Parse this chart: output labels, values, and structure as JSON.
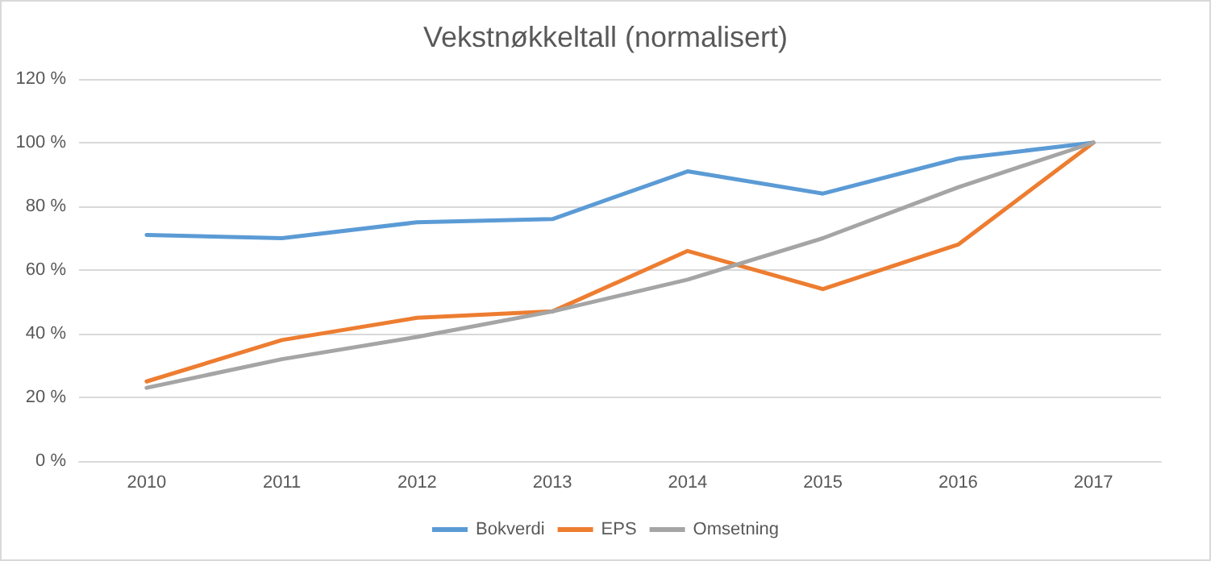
{
  "chart_data": {
    "type": "line",
    "title": "Vekstnøkkeltall (normalisert)",
    "categories": [
      "2010",
      "2011",
      "2012",
      "2013",
      "2014",
      "2015",
      "2016",
      "2017"
    ],
    "series": [
      {
        "name": "Bokverdi",
        "color": "#5b9bd5",
        "values": [
          71,
          70,
          75,
          76,
          91,
          84,
          95,
          100
        ]
      },
      {
        "name": "EPS",
        "color": "#ed7d31",
        "values": [
          25,
          38,
          45,
          47,
          66,
          54,
          68,
          100
        ]
      },
      {
        "name": "Omsetning",
        "color": "#a5a5a5",
        "values": [
          23,
          32,
          39,
          47,
          57,
          70,
          86,
          100
        ]
      }
    ],
    "ylim": [
      0,
      120
    ],
    "yticks": [
      {
        "value": 0,
        "label": "0 %"
      },
      {
        "value": 20,
        "label": "20 %"
      },
      {
        "value": 40,
        "label": "40 %"
      },
      {
        "value": 60,
        "label": "60 %"
      },
      {
        "value": 80,
        "label": "80 %"
      },
      {
        "value": 100,
        "label": "100 %"
      },
      {
        "value": 120,
        "label": "120 %"
      }
    ],
    "grid": "y",
    "legend": "bottom",
    "marker": "none",
    "line_style": "solid"
  }
}
